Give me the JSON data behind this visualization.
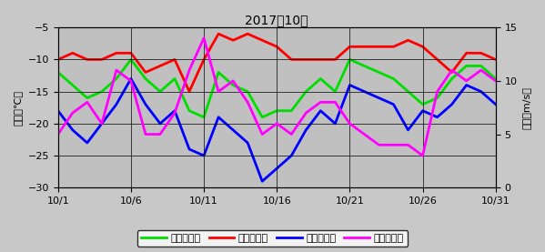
{
  "title": "2017年10月",
  "xlabel_ticks": [
    "10/1",
    "10/6",
    "10/11",
    "10/16",
    "10/21",
    "10/26",
    "10/31"
  ],
  "days": [
    1,
    2,
    3,
    4,
    5,
    6,
    7,
    8,
    9,
    10,
    11,
    12,
    13,
    14,
    15,
    16,
    17,
    18,
    19,
    20,
    21,
    22,
    23,
    24,
    25,
    26,
    27,
    28,
    29,
    30,
    31
  ],
  "avg_temp": [
    -12,
    -14,
    -16,
    -15,
    -13,
    -10,
    -13,
    -15,
    -13,
    -18,
    -19,
    -12,
    -14,
    -15,
    -19,
    -18,
    -18,
    -15,
    -13,
    -15,
    -10,
    -11,
    -12,
    -13,
    -15,
    -17,
    -16,
    -13,
    -11,
    -11,
    -13
  ],
  "max_temp": [
    -10,
    -9,
    -10,
    -10,
    -9,
    -9,
    -12,
    -11,
    -10,
    -15,
    -10,
    -6,
    -7,
    -6,
    -7,
    -8,
    -10,
    -10,
    -10,
    -10,
    -8,
    -8,
    -8,
    -8,
    -7,
    -8,
    -10,
    -12,
    -9,
    -9,
    -10
  ],
  "min_temp": [
    -18,
    -21,
    -23,
    -20,
    -17,
    -13,
    -17,
    -20,
    -18,
    -24,
    -25,
    -19,
    -21,
    -23,
    -29,
    -27,
    -25,
    -21,
    -18,
    -20,
    -14,
    -15,
    -16,
    -17,
    -21,
    -18,
    -19,
    -17,
    -14,
    -15,
    -17
  ],
  "avg_wind": [
    5,
    7,
    8,
    6,
    11,
    10,
    5,
    5,
    7,
    11,
    14,
    9,
    10,
    8,
    5,
    6,
    5,
    7,
    8,
    8,
    6,
    5,
    4,
    4,
    4,
    3,
    9,
    11,
    10,
    11,
    10
  ],
  "temp_ylim": [
    -30,
    -5
  ],
  "wind_ylim": [
    0,
    15
  ],
  "temp_yticks": [
    -30,
    -25,
    -20,
    -15,
    -10,
    -5
  ],
  "wind_yticks": [
    0,
    5,
    10,
    15
  ],
  "color_avg_temp": "#00dd00",
  "color_max_temp": "#ff0000",
  "color_min_temp": "#0000ff",
  "color_avg_wind": "#ff00ff",
  "fig_bg_color": "#c8c8c8",
  "plot_bg_color": "#c0c0c0",
  "legend_labels": [
    "日平均気温",
    "日最高気温",
    "日最低気温",
    "日平均風速"
  ],
  "ylabel_temp": "気温（℃）",
  "ylabel_wind": "風速（m/s）",
  "linewidth": 2.0,
  "title_fontsize": 10,
  "tick_fontsize": 8,
  "label_fontsize": 8
}
